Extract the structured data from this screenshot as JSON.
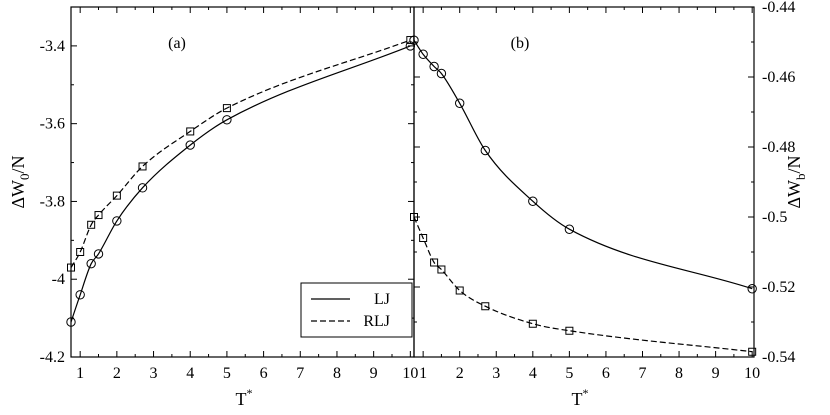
{
  "chart_data": [
    {
      "type": "line",
      "panel_label": "(a)",
      "xlabel": "T*",
      "ylabel": "ΔW0/N",
      "xlim": [
        0.75,
        10.1
      ],
      "ylim": [
        -4.2,
        -3.3
      ],
      "xticks": [
        1,
        2,
        3,
        4,
        5,
        6,
        7,
        8,
        9,
        10
      ],
      "yticks": [
        -4.2,
        -4,
        -3.8,
        -3.6,
        -3.4
      ],
      "ytick_labels": [
        "-4.2",
        "-4",
        "-3.8",
        "-3.6",
        "-3.4"
      ],
      "legend_position": "bottom-right",
      "series": [
        {
          "name": "LJ",
          "line_style": "solid",
          "marker": "circle",
          "x": [
            0.75,
            1.0,
            1.3,
            1.5,
            2.0,
            2.7,
            4.0,
            5.0,
            10.0
          ],
          "y": [
            -4.11,
            -4.04,
            -3.96,
            -3.935,
            -3.85,
            -3.765,
            -3.655,
            -3.59,
            -3.4
          ]
        },
        {
          "name": "RLJ",
          "line_style": "dashed",
          "marker": "square",
          "x": [
            0.75,
            1.0,
            1.3,
            1.5,
            2.0,
            2.7,
            4.0,
            5.0,
            10.0
          ],
          "y": [
            -3.97,
            -3.93,
            -3.86,
            -3.835,
            -3.785,
            -3.71,
            -3.62,
            -3.56,
            -3.385
          ]
        }
      ]
    },
    {
      "type": "line",
      "panel_label": "(b)",
      "xlabel": "T*",
      "ylabel": "ΔWb/N",
      "xlim": [
        0.75,
        10.05
      ],
      "ylim": [
        -0.54,
        -0.44
      ],
      "xticks": [
        1,
        2,
        3,
        4,
        5,
        6,
        7,
        8,
        9,
        10
      ],
      "yticks": [
        -0.54,
        -0.52,
        -0.5,
        -0.48,
        -0.46,
        -0.44
      ],
      "ytick_labels": [
        "-0.54",
        "-0.52",
        "-0.5",
        "-0.48",
        "-0.46",
        "-0.44"
      ],
      "series": [
        {
          "name": "LJ",
          "line_style": "solid",
          "marker": "circle",
          "x": [
            0.75,
            1.0,
            1.3,
            1.5,
            2.0,
            2.7,
            4.0,
            5.0,
            10.0
          ],
          "y": [
            -0.4495,
            -0.4535,
            -0.457,
            -0.459,
            -0.4675,
            -0.481,
            -0.4955,
            -0.5035,
            -0.5205
          ]
        },
        {
          "name": "RLJ",
          "line_style": "dashed",
          "marker": "square",
          "x": [
            0.75,
            1.0,
            1.3,
            1.5,
            2.0,
            2.7,
            4.0,
            5.0,
            10.0
          ],
          "y": [
            -0.5,
            -0.506,
            -0.513,
            -0.515,
            -0.521,
            -0.5255,
            -0.5305,
            -0.5325,
            -0.5385
          ]
        }
      ]
    }
  ]
}
